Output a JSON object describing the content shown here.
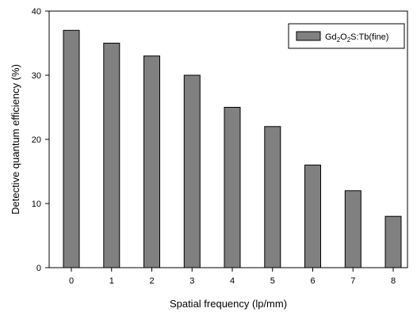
{
  "chart_data": {
    "type": "bar",
    "categories": [
      "0",
      "1",
      "2",
      "3",
      "4",
      "5",
      "6",
      "7",
      "8"
    ],
    "series": [
      {
        "name_parts": [
          "Gd",
          "2",
          "O",
          "2",
          "S:Tb(fine)"
        ],
        "values": [
          37,
          35,
          33,
          30,
          25,
          22,
          16,
          12,
          8
        ],
        "color": "#808080"
      }
    ],
    "xlabel": "Spatial frequency (lp/mm)",
    "ylabel": "Detective quantum efficiency (%)",
    "ylim": [
      0,
      40
    ],
    "yticks": [
      "0",
      "10",
      "20",
      "30",
      "40"
    ],
    "grid": false,
    "legend_position": "top-right"
  }
}
